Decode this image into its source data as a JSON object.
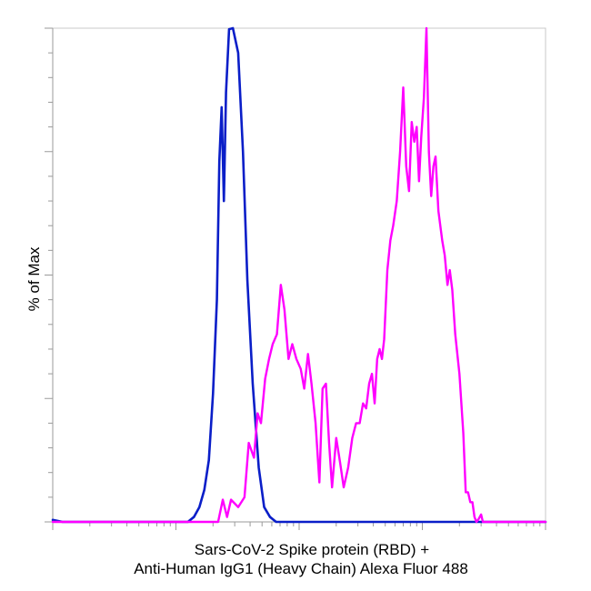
{
  "chart_data": {
    "type": "line",
    "title": "",
    "xlabel_lines": [
      "Sars-CoV-2 Spike protein (RBD) +",
      "Anti-Human IgG1 (Heavy Chain) Alexa Fluor 488"
    ],
    "ylabel": "% of Max",
    "x_scale": "log",
    "xlim": [
      0.1,
      1000
    ],
    "ylim": [
      0,
      100
    ],
    "grid": false,
    "legend": "none",
    "series": [
      {
        "color": "#0a1ec8",
        "points": [
          [
            0.1,
            0.4
          ],
          [
            0.12,
            0
          ],
          [
            1.25,
            0
          ],
          [
            1.4,
            1.0
          ],
          [
            1.55,
            3.0
          ],
          [
            1.7,
            6.5
          ],
          [
            1.85,
            12.5
          ],
          [
            2.0,
            26
          ],
          [
            2.15,
            45
          ],
          [
            2.25,
            73
          ],
          [
            2.35,
            84
          ],
          [
            2.45,
            65
          ],
          [
            2.55,
            87
          ],
          [
            2.7,
            99.8
          ],
          [
            2.9,
            100
          ],
          [
            3.2,
            95
          ],
          [
            3.5,
            75
          ],
          [
            3.8,
            49
          ],
          [
            4.2,
            28
          ],
          [
            4.7,
            11
          ],
          [
            5.2,
            3
          ],
          [
            5.8,
            1
          ],
          [
            6.5,
            0
          ],
          [
            1000,
            0
          ]
        ]
      },
      {
        "color": "#ff00ff",
        "points": [
          [
            0.1,
            0
          ],
          [
            2.2,
            0
          ],
          [
            2.4,
            4.5
          ],
          [
            2.6,
            1.0
          ],
          [
            2.8,
            4.5
          ],
          [
            3.2,
            3.0
          ],
          [
            3.6,
            5.0
          ],
          [
            3.9,
            16
          ],
          [
            4.3,
            13
          ],
          [
            4.6,
            22
          ],
          [
            4.9,
            20
          ],
          [
            5.3,
            29
          ],
          [
            5.7,
            33
          ],
          [
            6.1,
            36
          ],
          [
            6.6,
            38
          ],
          [
            7.1,
            48
          ],
          [
            7.6,
            43
          ],
          [
            8.2,
            33
          ],
          [
            8.8,
            36
          ],
          [
            9.5,
            33
          ],
          [
            10.3,
            31
          ],
          [
            11.0,
            27
          ],
          [
            11.8,
            34
          ],
          [
            12.6,
            28
          ],
          [
            13.6,
            20
          ],
          [
            14.6,
            8
          ],
          [
            15.5,
            27
          ],
          [
            16.5,
            28
          ],
          [
            17.5,
            16
          ],
          [
            18.5,
            7
          ],
          [
            20.0,
            17
          ],
          [
            21.5,
            12
          ],
          [
            23.0,
            7
          ],
          [
            25.0,
            11
          ],
          [
            27.0,
            17
          ],
          [
            29.0,
            20
          ],
          [
            31.0,
            20
          ],
          [
            33.0,
            24
          ],
          [
            35.0,
            23
          ],
          [
            37.0,
            28
          ],
          [
            39.0,
            30
          ],
          [
            41.0,
            24
          ],
          [
            43.0,
            33
          ],
          [
            45.0,
            35
          ],
          [
            47.0,
            33
          ],
          [
            49.0,
            37
          ],
          [
            52.0,
            51
          ],
          [
            55.0,
            57
          ],
          [
            58.0,
            60
          ],
          [
            62.0,
            65
          ],
          [
            66.0,
            75
          ],
          [
            70.0,
            88
          ],
          [
            74.0,
            72
          ],
          [
            78.0,
            67
          ],
          [
            82.0,
            81
          ],
          [
            86.0,
            77
          ],
          [
            90.0,
            80
          ],
          [
            94.0,
            69
          ],
          [
            98.0,
            78
          ],
          [
            103.0,
            86
          ],
          [
            108.0,
            100
          ],
          [
            113.0,
            75
          ],
          [
            118.0,
            66
          ],
          [
            123.0,
            72
          ],
          [
            128.0,
            74
          ],
          [
            135.0,
            63
          ],
          [
            145.0,
            57
          ],
          [
            152.0,
            54
          ],
          [
            160.0,
            48
          ],
          [
            167.0,
            51
          ],
          [
            175.0,
            47
          ],
          [
            185.0,
            38
          ],
          [
            200.0,
            30
          ],
          [
            215.0,
            18
          ],
          [
            225.0,
            6
          ],
          [
            235.0,
            6
          ],
          [
            245.0,
            4
          ],
          [
            255.0,
            4
          ],
          [
            265.0,
            1
          ],
          [
            275.0,
            0
          ],
          [
            285.0,
            0.5
          ],
          [
            300.0,
            1.5
          ],
          [
            310.0,
            0
          ],
          [
            1000,
            0
          ]
        ]
      }
    ]
  }
}
